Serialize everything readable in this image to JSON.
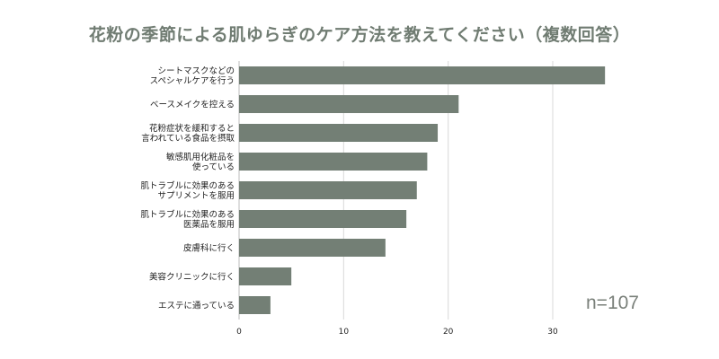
{
  "chart_data": {
    "type": "bar",
    "orientation": "horizontal",
    "title": "花粉の季節による肌ゆらぎのケア方法を教えてください（複数回答）",
    "annotation": "n=107",
    "categories": [
      [
        "シートマスクなどの",
        "スペシャルケアを行う"
      ],
      [
        "ベースメイクを控える"
      ],
      [
        "花粉症状を緩和すると",
        "言われている食品を摂取"
      ],
      [
        "敏感肌用化粧品を",
        "使っている"
      ],
      [
        "肌トラブルに効果のある",
        "サプリメントを服用"
      ],
      [
        "肌トラブルに効果のある",
        "医薬品を服用"
      ],
      [
        "皮膚科に行く"
      ],
      [
        "美容クリニックに行く"
      ],
      [
        "エステに通っている"
      ]
    ],
    "values": [
      35,
      21,
      19,
      18,
      17,
      16,
      14,
      5,
      3
    ],
    "xlim": [
      0,
      36
    ],
    "xticks": [
      0,
      10,
      20,
      30
    ],
    "grid": "vertical",
    "bar_color": "#737f75",
    "grid_color": "#d9d9d9"
  }
}
